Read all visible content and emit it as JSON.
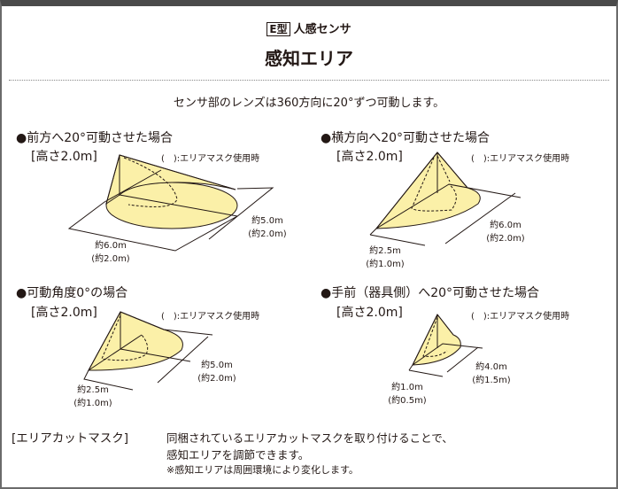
{
  "header": {
    "badge": "E型",
    "subtitle": "人感センサ",
    "title": "感知エリア"
  },
  "lead": "センサ部のレンズは360方向に20°ずつ可動します。",
  "colors": {
    "cone_fill": "#fbf0a8",
    "line": "#231815",
    "frame": "#6b6b6b"
  },
  "mask_note": "(　):エリアマスク使用時",
  "diagrams": [
    {
      "heading": "●前方へ20°可動させた場合",
      "height": "[高さ2.0m]",
      "dim_a": [
        "約6.0m",
        "(約2.0m)"
      ],
      "dim_b": [
        "約5.0m",
        "(約2.0m)"
      ]
    },
    {
      "heading": "●横方向へ20°可動させた場合",
      "height": "[高さ2.0m]",
      "dim_a": [
        "約2.5m",
        "(約1.0m)"
      ],
      "dim_b": [
        "約6.0m",
        "(約2.0m)"
      ]
    },
    {
      "heading": "●可動角度0°の場合",
      "height": "[高さ2.0m]",
      "dim_a": [
        "約2.5m",
        "(約1.0m)"
      ],
      "dim_b": [
        "約5.0m",
        "(約2.0m)"
      ]
    },
    {
      "heading": "●手前（器具側）へ20°可動させた場合",
      "height": "[高さ2.0m]",
      "dim_a": [
        "約1.0m",
        "(約0.5m)"
      ],
      "dim_b": [
        "約4.0m",
        "(約1.5m)"
      ]
    }
  ],
  "footer": {
    "label": "[エリアカットマスク]",
    "line1": "同梱されているエリアカットマスクを取り付けることで、",
    "line2": "感知エリアを調節できます。",
    "note": "※感知エリアは周囲環境により変化します。"
  }
}
